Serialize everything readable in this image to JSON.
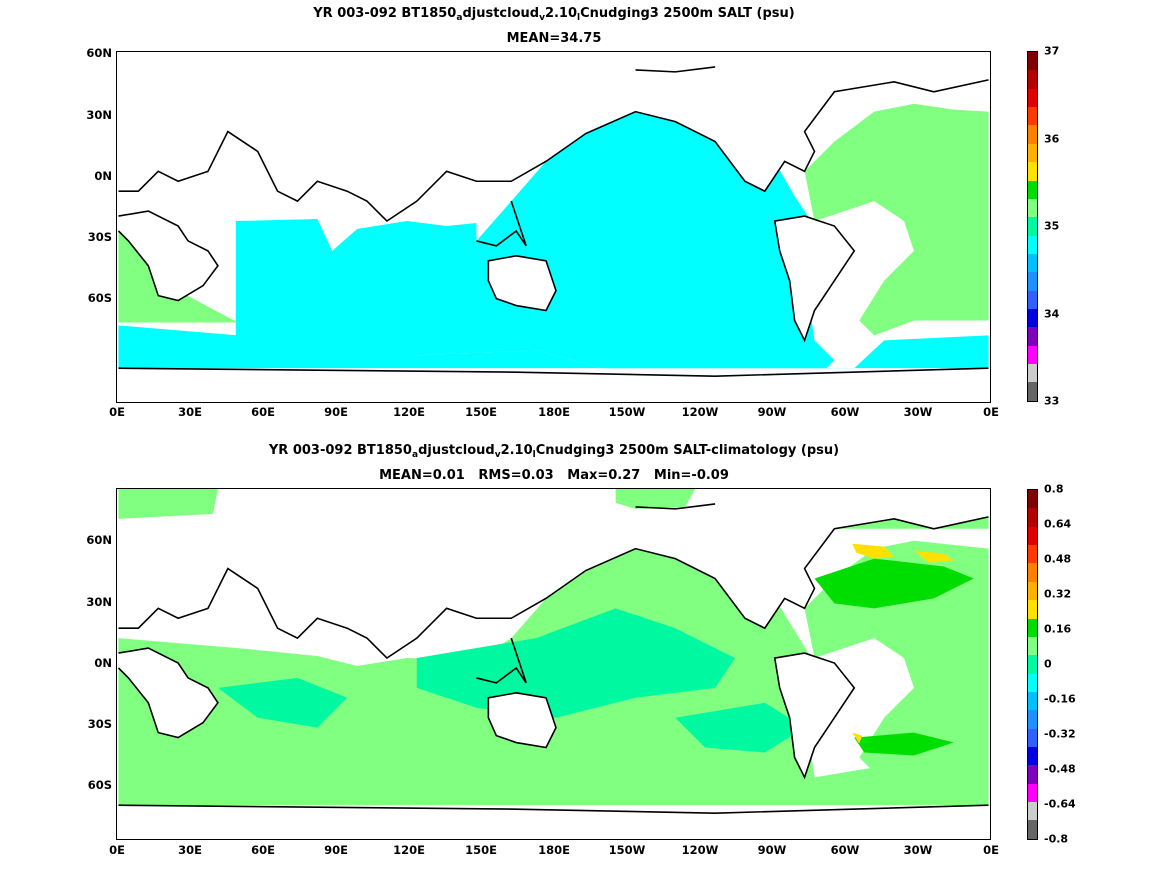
{
  "panels": [
    {
      "title_parts": [
        "YR 003-092 BT1850",
        "a",
        "djustcloud",
        "v",
        "2.10",
        "l",
        "Cnudging3 2500m SALT (psu)"
      ],
      "subtitle": "MEAN=34.75",
      "x_ticks": [
        "0E",
        "30E",
        "60E",
        "90E",
        "120E",
        "150E",
        "180E",
        "150W",
        "120W",
        "90W",
        "60W",
        "30W",
        "0E"
      ],
      "y_ticks": [
        "60N",
        "30N",
        "0N",
        "30S",
        "60S"
      ],
      "colorbar_labels": [
        "37",
        "36",
        "35",
        "34",
        "33"
      ],
      "colorbar_colors": [
        "#7f0000",
        "#b30000",
        "#e00000",
        "#ff3a00",
        "#ff8000",
        "#ffb000",
        "#ffe000",
        "#00dd00",
        "#80ff80",
        "#00f8a0",
        "#00ffff",
        "#00c0ff",
        "#1e90ff",
        "#3060ff",
        "#0000e0",
        "#8000c0",
        "#ff00ff",
        "#cccccc",
        "#666666"
      ]
    },
    {
      "title_parts": [
        "YR 003-092 BT1850",
        "a",
        "djustcloud",
        "v",
        "2.10",
        "l",
        "Cnudging3 2500m SALT-climatology (psu)"
      ],
      "subtitle": "MEAN=0.01   RMS=0.03   Max=0.27   Min=-0.09",
      "x_ticks": [
        "0E",
        "30E",
        "60E",
        "90E",
        "120E",
        "150E",
        "180E",
        "150W",
        "120W",
        "90W",
        "60W",
        "30W",
        "0E"
      ],
      "y_ticks": [
        "60N",
        "30N",
        "0N",
        "30S",
        "60S"
      ],
      "colorbar_labels": [
        "0.8",
        "0.64",
        "0.48",
        "0.32",
        "0.16",
        "0",
        "-0.16",
        "-0.32",
        "-0.48",
        "-0.64",
        "-0.8"
      ],
      "colorbar_colors": [
        "#7f0000",
        "#b30000",
        "#e00000",
        "#ff3a00",
        "#ff8000",
        "#ffb000",
        "#ffe000",
        "#00dd00",
        "#80ff80",
        "#00f8a0",
        "#00ffff",
        "#00c0ff",
        "#1e90ff",
        "#3060ff",
        "#0000e0",
        "#8000c0",
        "#ff00ff",
        "#cccccc",
        "#666666"
      ]
    }
  ],
  "field_colors": {
    "panel1_main": "#00ffff",
    "panel1_secondary": "#80ff80",
    "panel1_tertiary": "#00f8a0",
    "panel2_main": "#80ff80",
    "panel2_secondary": "#00f8a0",
    "panel2_highlight": "#00dd00",
    "panel2_peak": "#ffe000",
    "land": "#ffffff",
    "coast": "#000000"
  }
}
